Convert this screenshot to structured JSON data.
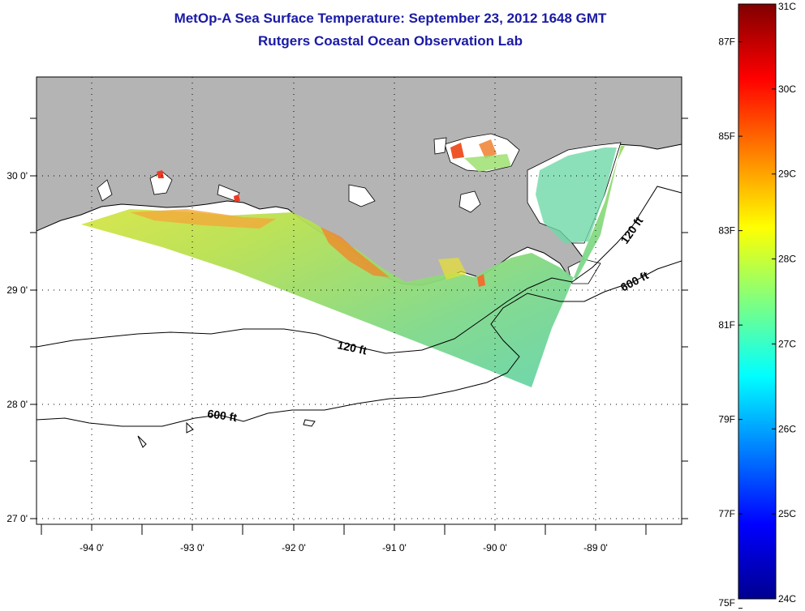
{
  "title": "MetOp-A Sea Surface Temperature:  September 23, 2012 1648 GMT",
  "subtitle": "Rutgers Coastal Ocean Observation Lab",
  "map": {
    "lon_ticks": [
      "-94 0'",
      "-93 0'",
      "-92 0'",
      "-91 0'",
      "-90 0'",
      "-89 0'"
    ],
    "lat_ticks": [
      "30 0'",
      "29 0'",
      "28 0'",
      "27 0'"
    ],
    "contours": [
      "120 ft",
      "120 ft",
      "600 ft",
      "600 ft"
    ],
    "land_color": "#b4b4b4",
    "grid": "dotted"
  },
  "colorbar": {
    "celsius": [
      "31C",
      "30C",
      "29C",
      "28C",
      "27C",
      "26C",
      "25C",
      "24C"
    ],
    "fahrenheit": [
      "87F",
      "85F",
      "83F",
      "81F",
      "79F",
      "77F",
      "75F"
    ],
    "colormap": "jet",
    "range_c": [
      24,
      31
    ]
  }
}
